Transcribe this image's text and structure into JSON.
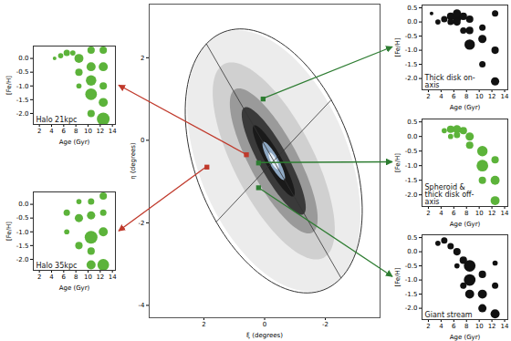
{
  "chart_data": [
    {
      "type": "map",
      "xlabel": "ξ (degrees)",
      "ylabel": "η (degrees)",
      "xlim": [
        3.8,
        -3.8
      ],
      "xticks": [
        2,
        0,
        -2
      ],
      "ylim": [
        -4.3,
        3.3
      ],
      "yticks": [
        2,
        0,
        -2,
        -4
      ],
      "ellipse": {
        "xi": -0.3,
        "eta": -0.5,
        "semi_major": 3.6,
        "semi_minor": 2.4,
        "position_angle": 38
      },
      "fields": [
        {
          "panel": "Halo 21kpc",
          "xi": 0.6,
          "eta": -0.35,
          "color": "#c0392b"
        },
        {
          "panel": "Halo 35kpc",
          "xi": 1.9,
          "eta": -0.65,
          "color": "#c0392b"
        },
        {
          "panel": "Thick disk on-axis",
          "xi": 0.05,
          "eta": 1.0,
          "color": "#2e7d32"
        },
        {
          "panel": "Spheroid & thick disk off-axis",
          "xi": 0.2,
          "eta": -0.55,
          "color": "#2e7d32"
        },
        {
          "panel": "Giant stream",
          "xi": 0.2,
          "eta": -1.15,
          "color": "#2e7d32"
        }
      ]
    },
    {
      "type": "bubble",
      "title": "Halo 21kpc",
      "xlabel": "Age (Gyr)",
      "ylabel": "[Fe/H]",
      "xlim": [
        1,
        14.5
      ],
      "xticks": [
        2,
        4,
        6,
        8,
        10,
        12,
        14
      ],
      "ylim": [
        -2.4,
        0.45
      ],
      "yticks": [
        {
          "value": -2,
          "label": "-2.0"
        },
        -1.5,
        {
          "value": -1,
          "label": "-1.0"
        },
        -0.5,
        {
          "value": 0,
          "label": "0.0"
        }
      ],
      "color": "#5cb33a",
      "x": [
        5.5,
        6.5,
        8.5,
        8.5,
        8.5,
        10.5,
        10.5,
        10.5,
        10.5,
        10.5,
        12.5,
        12.5,
        12.5,
        12.5,
        12.5,
        7.5,
        4.5
      ],
      "y": [
        0.1,
        0.2,
        0.0,
        -0.5,
        -1.0,
        0.3,
        -0.3,
        -0.8,
        -1.3,
        -2.0,
        0.3,
        -0.3,
        -1.0,
        -1.6,
        -2.2,
        0.2,
        0.0
      ],
      "sizes": [
        1,
        1.5,
        3,
        2,
        1,
        2,
        3,
        4,
        5,
        2,
        2,
        3,
        2,
        3,
        6,
        1,
        0.5
      ]
    },
    {
      "type": "bubble",
      "title": "Halo 35kpc",
      "xlabel": "Age (Gyr)",
      "ylabel": "[Fe/H]",
      "xlim": [
        1,
        14.5
      ],
      "xticks": [
        2,
        4,
        6,
        8,
        10,
        12,
        14
      ],
      "ylim": [
        -2.4,
        0.45
      ],
      "yticks": [
        {
          "value": -2,
          "label": "-2.0"
        },
        -1.5,
        {
          "value": -1,
          "label": "-1.0"
        },
        -0.5,
        {
          "value": 0,
          "label": "0.0"
        }
      ],
      "color": "#5cb33a",
      "x": [
        6.5,
        8.5,
        8.5,
        8.5,
        10.5,
        10.5,
        10.5,
        10.5,
        12.5,
        12.5,
        12.5,
        12.5,
        6.5,
        10.5
      ],
      "y": [
        -0.3,
        0.1,
        -0.5,
        -1.5,
        0.1,
        -0.4,
        -1.2,
        -2.2,
        0.3,
        -0.3,
        -1.0,
        -2.2,
        -1.0,
        -1.7
      ],
      "sizes": [
        1.5,
        1,
        2.5,
        2,
        1.5,
        2.5,
        6,
        3,
        2,
        1.5,
        3,
        5,
        1,
        2
      ]
    },
    {
      "type": "bubble",
      "title": "Thick disk on-axis",
      "xlabel": "Age (Gyr)",
      "ylabel": "[Fe/H]",
      "xlim": [
        1,
        14.5
      ],
      "xticks": [
        2,
        4,
        6,
        8,
        10,
        12,
        14
      ],
      "ylim": [
        -2.4,
        0.6
      ],
      "yticks": [
        {
          "value": -2,
          "label": "-2.0"
        },
        -1.5,
        {
          "value": -1,
          "label": "-1.0"
        },
        -0.5,
        {
          "value": 0,
          "label": "0.0"
        },
        0.5
      ],
      "color": "#111111",
      "x": [
        3.5,
        4.5,
        5.5,
        5.5,
        6.5,
        6.5,
        6.5,
        7.5,
        7.5,
        8.5,
        8.5,
        8.5,
        10.5,
        10.5,
        10.5,
        12.5,
        12.5,
        12.5,
        2.5
      ],
      "y": [
        0.0,
        0.1,
        0.2,
        0.0,
        0.3,
        0.15,
        0.0,
        0.2,
        -0.3,
        0.1,
        -0.3,
        -0.8,
        -0.2,
        -0.6,
        -1.5,
        0.3,
        -1.0,
        -2.1,
        0.3
      ],
      "sizes": [
        1,
        1.5,
        2,
        1.5,
        2.5,
        3,
        2,
        2,
        1.5,
        2,
        2,
        4,
        1.5,
        2.5,
        1.5,
        1.5,
        2,
        2.5,
        0.5
      ]
    },
    {
      "type": "bubble",
      "title": "Spheroid & thick disk off-axis",
      "xlabel": "Age (Gyr)",
      "ylabel": "[Fe/H]",
      "xlim": [
        1,
        14.5
      ],
      "xticks": [
        2,
        4,
        6,
        8,
        10,
        12,
        14
      ],
      "ylim": [
        -2.4,
        0.6
      ],
      "yticks": [
        {
          "value": -2,
          "label": "-2.0"
        },
        -1.5,
        {
          "value": -1,
          "label": "-1.0"
        },
        -0.5,
        {
          "value": 0,
          "label": "0.0"
        },
        0.5
      ],
      "color": "#5cb33a",
      "x": [
        4.5,
        5.5,
        6.5,
        7.5,
        6.5,
        8.5,
        8.5,
        10.5,
        10.5,
        10.5,
        12.5,
        12.5,
        12.5,
        5.5
      ],
      "y": [
        0.2,
        0.25,
        0.25,
        0.2,
        0.05,
        0.0,
        -0.3,
        -0.5,
        -1.0,
        -1.5,
        -0.8,
        -1.5,
        -2.2,
        0.0
      ],
      "sizes": [
        1,
        2,
        2.5,
        2,
        1.5,
        2.5,
        2,
        4,
        5,
        2,
        2,
        3,
        3,
        1
      ]
    },
    {
      "type": "bubble",
      "title": "Giant stream",
      "xlabel": "Age (Gyr)",
      "ylabel": "[Fe/H]",
      "xlim": [
        1,
        14.5
      ],
      "xticks": [
        2,
        4,
        6,
        8,
        10,
        12,
        14
      ],
      "ylim": [
        -2.4,
        0.6
      ],
      "yticks": [
        {
          "value": -2,
          "label": "-2.0"
        },
        -1.5,
        {
          "value": -1,
          "label": "-1.0"
        },
        -0.5,
        {
          "value": 0,
          "label": "0.0"
        },
        0.5
      ],
      "color": "#111111",
      "x": [
        4.5,
        5.5,
        6.5,
        6.5,
        7.5,
        7.5,
        8.5,
        8.5,
        8.5,
        10.5,
        10.5,
        10.5,
        12.5,
        12.5,
        3.5,
        12.5
      ],
      "y": [
        0.4,
        0.2,
        0.0,
        -0.5,
        -0.3,
        -1.2,
        -0.5,
        -1.0,
        -1.5,
        -0.8,
        -1.5,
        -2.0,
        -1.2,
        -2.2,
        0.3,
        -0.4
      ],
      "sizes": [
        1.5,
        1.5,
        2,
        1,
        2,
        1.5,
        5,
        5,
        3,
        2,
        3,
        2.5,
        1.5,
        3,
        1,
        1
      ]
    }
  ]
}
